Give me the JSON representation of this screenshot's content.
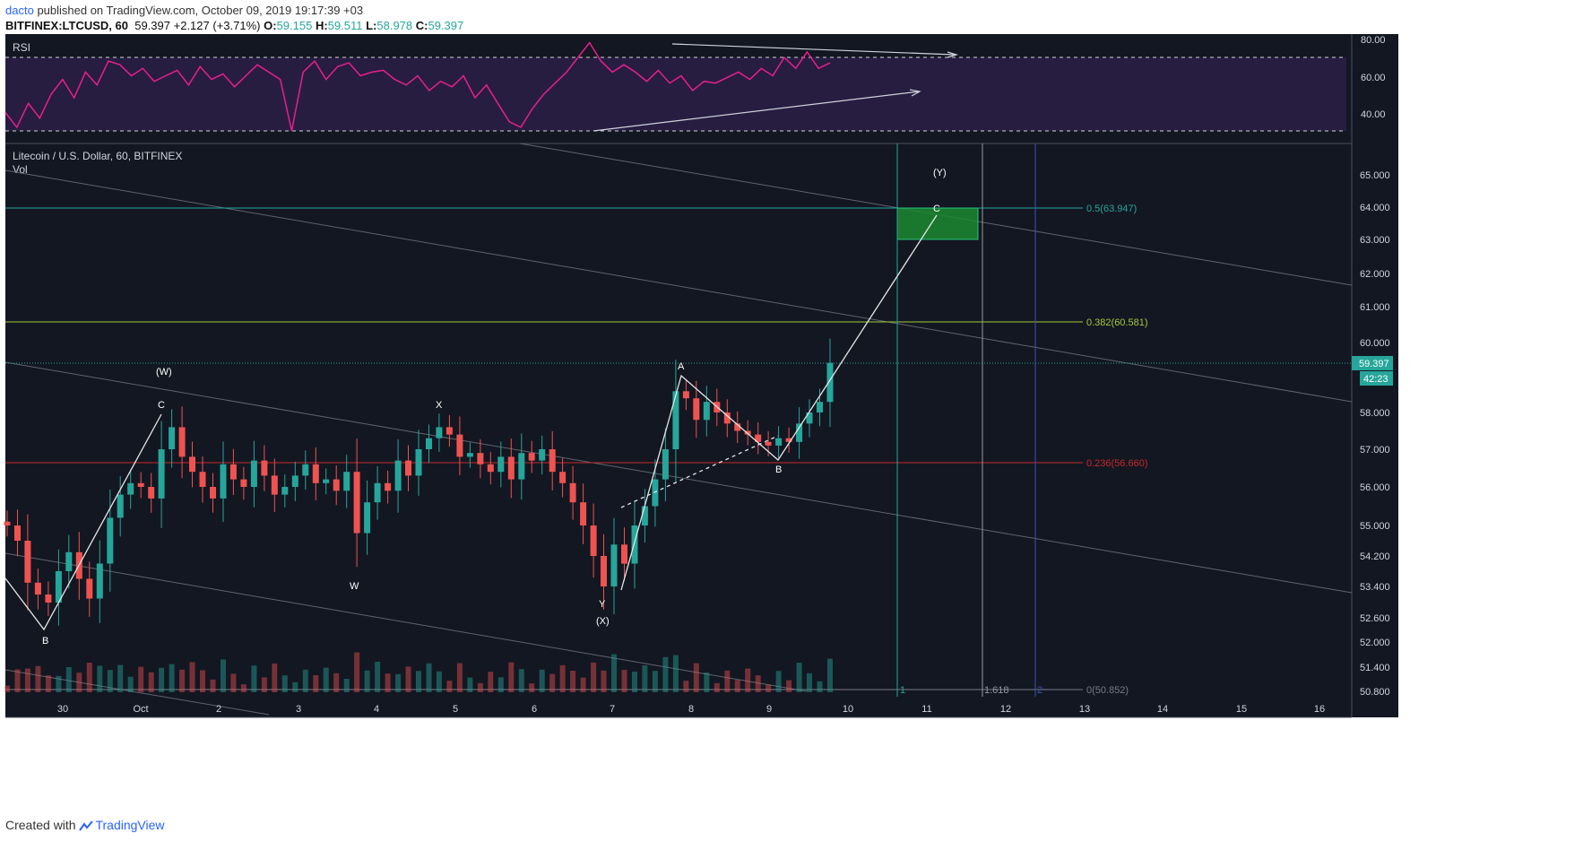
{
  "header": {
    "author": "dacto",
    "published_text": "published on TradingView.com, October 09, 2019 19:17:39 +03",
    "symbol": "BITFINEX:LTCUSD, 60",
    "last": "59.397",
    "change": "+2.127 (+3.71%)",
    "o_label": "O:",
    "o": "59.155",
    "h_label": "H:",
    "h": "59.511",
    "l_label": "L:",
    "l": "58.978",
    "c_label": "C:",
    "c": "59.397"
  },
  "footer": {
    "created_with": "Created with",
    "brand": "TradingView"
  },
  "colors": {
    "background": "#131722",
    "up": "#26a69a",
    "down": "#ef5350",
    "rsi": "#e91e8c",
    "fib_05": "#26a69a",
    "fib_0382": "#a3c93a",
    "fib_0236": "#c62828",
    "target_box": "#1b8a2f"
  },
  "rsi_panel": {
    "label": "RSI",
    "levels": [
      70,
      30
    ],
    "ticks": [
      "80.00",
      "60.00",
      "40.00"
    ],
    "series_approx": [
      40,
      32,
      45,
      37,
      50,
      58,
      48,
      62,
      55,
      68,
      66,
      60,
      64,
      57,
      60,
      63,
      55,
      65,
      58,
      61,
      54,
      60,
      66,
      62,
      58,
      30,
      62,
      68,
      58,
      65,
      67,
      60,
      62,
      63,
      58,
      55,
      60,
      52,
      57,
      54,
      60,
      48,
      55,
      45,
      35,
      32,
      42,
      50,
      56,
      62,
      70,
      78,
      68,
      62,
      66,
      62,
      57,
      63,
      56,
      60,
      52,
      57,
      56,
      59,
      62,
      58,
      64,
      60,
      70,
      64,
      73,
      64,
      67
    ]
  },
  "price_panel": {
    "title": "Litecoin / U.S. Dollar, 60, BITFINEX",
    "vol_label": "Vol",
    "y_ticks": [
      "65.000",
      "64.000",
      "63.000",
      "62.000",
      "61.000",
      "60.000",
      "58.000",
      "57.000",
      "56.000",
      "55.000",
      "54.200",
      "53.400",
      "52.600",
      "52.000",
      "51.400",
      "50.800"
    ],
    "x_ticks": [
      "30",
      "Oct",
      "2",
      "3",
      "4",
      "5",
      "6",
      "7",
      "8",
      "9",
      "10",
      "11",
      "12",
      "13",
      "14",
      "15",
      "16"
    ],
    "last_price_badge": "59.397",
    "countdown_badge": "42:23",
    "fib_levels": [
      {
        "label": "0.5(63.947)",
        "color": "#26a69a"
      },
      {
        "label": "0.382(60.581)",
        "color": "#a3c93a"
      },
      {
        "label": "0.236(56.660)",
        "color": "#c62828"
      },
      {
        "label": "0(50.852)",
        "color": "#787b86"
      }
    ],
    "time_markers": [
      "1",
      "1.618",
      "2"
    ],
    "wave_labels": [
      "(W)",
      "C",
      "X",
      "W",
      "A",
      "B",
      "Y",
      "(X)",
      "B",
      "(Y)",
      "C"
    ]
  },
  "chart_data": {
    "type": "candlestick",
    "symbol": "BITFINEX:LTCUSD",
    "interval": "60",
    "closes_approx": [
      55.0,
      54.6,
      53.5,
      53.2,
      53.0,
      53.8,
      54.3,
      53.6,
      53.1,
      54.0,
      55.2,
      55.8,
      56.1,
      56.0,
      55.7,
      57.0,
      57.6,
      56.8,
      56.4,
      56.0,
      55.7,
      56.6,
      56.2,
      56.0,
      56.7,
      56.3,
      55.8,
      56.0,
      56.3,
      56.6,
      56.1,
      56.2,
      55.9,
      56.4,
      54.8,
      55.6,
      56.1,
      55.9,
      56.7,
      56.3,
      57.0,
      57.3,
      57.6,
      57.4,
      56.8,
      56.9,
      56.6,
      56.4,
      56.8,
      56.2,
      56.9,
      56.7,
      57.0,
      56.4,
      56.1,
      55.6,
      55.0,
      54.2,
      53.4,
      54.5,
      54.0,
      55.0,
      55.5,
      56.2,
      57.0,
      58.6,
      58.4,
      57.8,
      58.3,
      58.0,
      57.7,
      57.5,
      57.4,
      57.2,
      57.1,
      57.3,
      57.2,
      57.7,
      58.0,
      58.3,
      59.4
    ],
    "ylim": [
      50.8,
      65.5
    ]
  }
}
